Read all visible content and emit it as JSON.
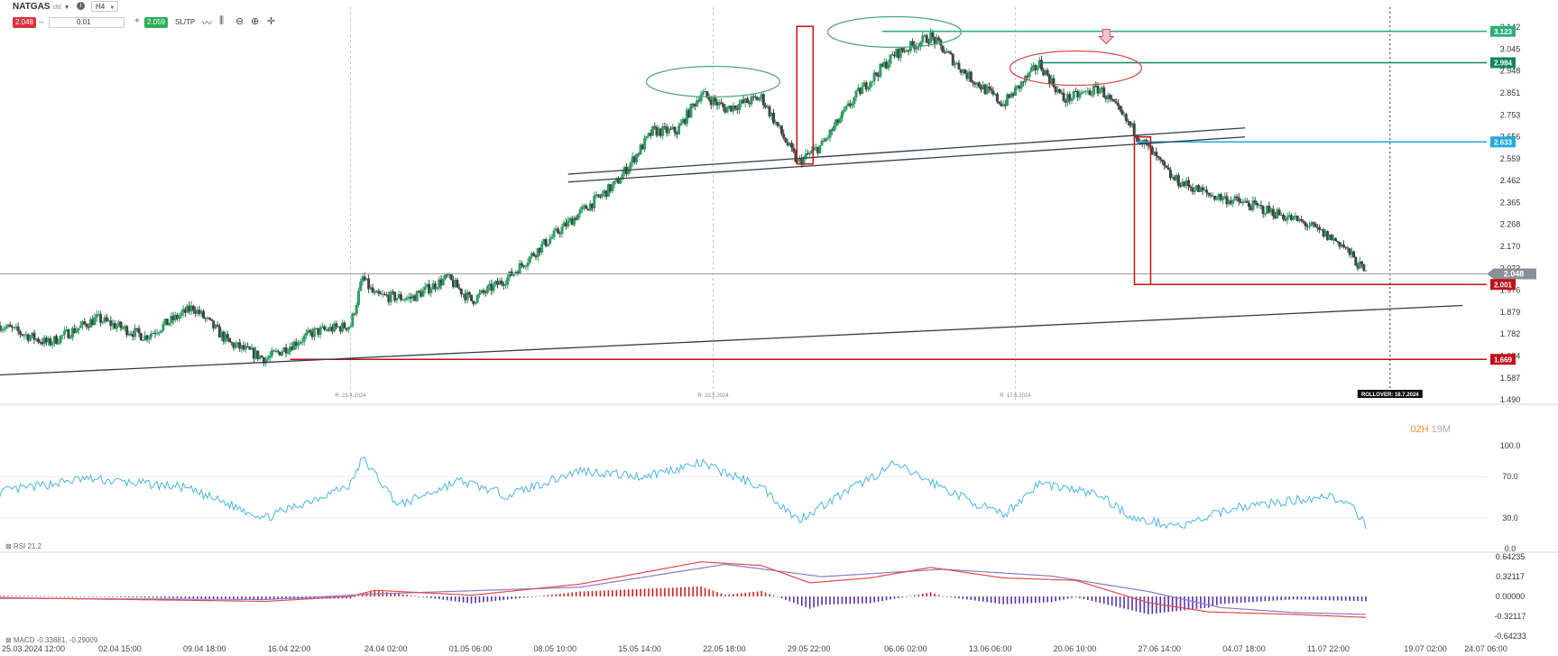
{
  "toolbar": {
    "symbol": "NATGAS",
    "symbol_suffix": "cfd",
    "timeframe": "H4",
    "sell_price": "2.048",
    "volume": "0.01",
    "buy_price": "2.059",
    "sltp_label": "SL/TP"
  },
  "colors": {
    "bull": "#2e9e63",
    "bear": "#444444",
    "rsi": "#4cb4e7",
    "macd_line": "#e04b4b",
    "signal_line": "#8a78c8",
    "hist_pos": "#cc2222",
    "hist_neg": "#5533aa",
    "level_green": "#2bae76",
    "level_darkgreen": "#12875a",
    "level_blue": "#24a8e0",
    "level_red": "#c0101a",
    "ellipse_green": "#4aa878",
    "ellipse_red": "#d24a4a",
    "rect_red": "#cc1010",
    "trendline": "#2f3d4a"
  },
  "chart_data": [
    {
      "type": "candlestick",
      "timeframe": "H4",
      "ylim": [
        1.49,
        3.142
      ],
      "y_ticks": [
        "3.142",
        "3.045",
        "2.948",
        "2.851",
        "2.753",
        "2.656",
        "2.559",
        "2.462",
        "2.365",
        "2.268",
        "2.170",
        "2.073",
        "1.976",
        "1.879",
        "1.782",
        "1.684",
        "1.587",
        "1.490"
      ],
      "x_labels": [
        "25.03.2024 12:00",
        "02.04 15:00",
        "09.04 18:00",
        "16.04 22:00",
        "24.04 02:00",
        "01.05 06:00",
        "08.05 10:00",
        "15.05 14:00",
        "22.05 18:00",
        "29.05 22:00",
        "06.06 02:00",
        "13.06 06:00",
        "20.06 10:00",
        "27.06 14:00",
        "04.07 18:00",
        "11.07 22:00",
        "19.07 02:00",
        "24.07 06:00"
      ],
      "rollover_markers": [
        "R: 23.4.2024",
        "R: 23.5.2024",
        "R: 17.6.2024"
      ],
      "rollover_note": "ROLLOVER: 18.7.2024",
      "countdown": {
        "hours": "02H",
        "minutes": "19M"
      },
      "current_price": "2.048",
      "levels": [
        {
          "value": 3.123,
          "label": "3.123",
          "color": "level_green"
        },
        {
          "value": 2.984,
          "label": "2.984",
          "color": "level_darkgreen"
        },
        {
          "value": 2.633,
          "label": "2.633",
          "color": "level_blue"
        },
        {
          "value": 2.001,
          "label": "2.001",
          "color": "level_red"
        },
        {
          "value": 1.669,
          "label": "1.669",
          "color": "level_red"
        }
      ],
      "close_path": [
        {
          "date": "2024-03-25",
          "close": 1.82
        },
        {
          "date": "2024-03-29",
          "close": 1.74
        },
        {
          "date": "2024-04-02",
          "close": 1.85
        },
        {
          "date": "2024-04-06",
          "close": 1.77
        },
        {
          "date": "2024-04-10",
          "close": 1.9
        },
        {
          "date": "2024-04-13",
          "close": 1.74
        },
        {
          "date": "2024-04-16",
          "close": 1.67
        },
        {
          "date": "2024-04-20",
          "close": 1.79
        },
        {
          "date": "2024-04-23",
          "close": 1.82
        },
        {
          "date": "2024-04-24",
          "close": 2.03
        },
        {
          "date": "2024-04-25",
          "close": 1.95
        },
        {
          "date": "2024-04-28",
          "close": 1.94
        },
        {
          "date": "2024-05-01",
          "close": 2.03
        },
        {
          "date": "2024-05-03",
          "close": 1.93
        },
        {
          "date": "2024-05-06",
          "close": 2.03
        },
        {
          "date": "2024-05-09",
          "close": 2.18
        },
        {
          "date": "2024-05-12",
          "close": 2.32
        },
        {
          "date": "2024-05-15",
          "close": 2.45
        },
        {
          "date": "2024-05-18",
          "close": 2.68
        },
        {
          "date": "2024-05-20",
          "close": 2.68
        },
        {
          "date": "2024-05-22",
          "close": 2.85
        },
        {
          "date": "2024-05-24",
          "close": 2.78
        },
        {
          "date": "2024-05-27",
          "close": 2.83
        },
        {
          "date": "2024-05-30",
          "close": 2.54
        },
        {
          "date": "2024-06-01",
          "close": 2.62
        },
        {
          "date": "2024-06-04",
          "close": 2.85
        },
        {
          "date": "2024-06-07",
          "close": 3.02
        },
        {
          "date": "2024-06-10",
          "close": 3.1
        },
        {
          "date": "2024-06-13",
          "close": 2.93
        },
        {
          "date": "2024-06-16",
          "close": 2.8
        },
        {
          "date": "2024-06-19",
          "close": 2.98
        },
        {
          "date": "2024-06-21",
          "close": 2.82
        },
        {
          "date": "2024-06-24",
          "close": 2.87
        },
        {
          "date": "2024-06-27",
          "close": 2.67
        },
        {
          "date": "2024-06-30",
          "close": 2.47
        },
        {
          "date": "2024-07-03",
          "close": 2.4
        },
        {
          "date": "2024-07-06",
          "close": 2.36
        },
        {
          "date": "2024-07-09",
          "close": 2.31
        },
        {
          "date": "2024-07-11",
          "close": 2.27
        },
        {
          "date": "2024-07-14",
          "close": 2.18
        },
        {
          "date": "2024-07-16",
          "close": 2.048
        }
      ],
      "trendlines": [
        {
          "from": {
            "date": "2024-03-25",
            "value": 1.6
          },
          "to": {
            "date": "2024-07-24",
            "value": 1.908
          }
        },
        {
          "from": {
            "date": "2024-05-11",
            "value": 2.49
          },
          "to": {
            "date": "2024-07-06",
            "value": 2.695
          }
        },
        {
          "from": {
            "date": "2024-05-11",
            "value": 2.455
          },
          "to": {
            "date": "2024-07-06",
            "value": 2.655
          }
        }
      ]
    },
    {
      "type": "line",
      "name": "RSI",
      "legend": "RSI 21.2",
      "ylim": [
        0,
        100
      ],
      "y_ticks": [
        "100.0",
        "70.0",
        "30.0",
        "0.0"
      ],
      "keypoints": [
        {
          "date": "2024-03-25",
          "value": 55
        },
        {
          "date": "2024-04-01",
          "value": 68
        },
        {
          "date": "2024-04-09",
          "value": 60
        },
        {
          "date": "2024-04-16",
          "value": 30
        },
        {
          "date": "2024-04-23",
          "value": 62
        },
        {
          "date": "2024-04-24",
          "value": 88
        },
        {
          "date": "2024-04-27",
          "value": 42
        },
        {
          "date": "2024-05-02",
          "value": 66
        },
        {
          "date": "2024-05-06",
          "value": 52
        },
        {
          "date": "2024-05-12",
          "value": 76
        },
        {
          "date": "2024-05-17",
          "value": 70
        },
        {
          "date": "2024-05-22",
          "value": 83
        },
        {
          "date": "2024-05-27",
          "value": 60
        },
        {
          "date": "2024-05-30",
          "value": 28
        },
        {
          "date": "2024-06-04",
          "value": 62
        },
        {
          "date": "2024-06-07",
          "value": 82
        },
        {
          "date": "2024-06-13",
          "value": 48
        },
        {
          "date": "2024-06-16",
          "value": 32
        },
        {
          "date": "2024-06-19",
          "value": 64
        },
        {
          "date": "2024-06-24",
          "value": 52
        },
        {
          "date": "2024-06-27",
          "value": 28
        },
        {
          "date": "2024-07-01",
          "value": 22
        },
        {
          "date": "2024-07-05",
          "value": 40
        },
        {
          "date": "2024-07-09",
          "value": 45
        },
        {
          "date": "2024-07-13",
          "value": 52
        },
        {
          "date": "2024-07-15",
          "value": 38
        },
        {
          "date": "2024-07-16",
          "value": 21.2
        }
      ]
    },
    {
      "type": "line",
      "name": "MACD",
      "legend": "MACD -0.33881, -0.29009",
      "ylim": [
        -0.64233,
        0.64235
      ],
      "y_ticks": [
        "0.64235",
        "0.32117",
        "0.00000",
        "-0.32117",
        "-0.64233"
      ],
      "macd_keypoints": [
        {
          "date": "2024-03-25",
          "value": -0.02
        },
        {
          "date": "2024-04-16",
          "value": -0.08
        },
        {
          "date": "2024-04-23",
          "value": 0.0
        },
        {
          "date": "2024-04-25",
          "value": 0.1
        },
        {
          "date": "2024-05-03",
          "value": 0.02
        },
        {
          "date": "2024-05-12",
          "value": 0.2
        },
        {
          "date": "2024-05-22",
          "value": 0.56
        },
        {
          "date": "2024-05-27",
          "value": 0.5
        },
        {
          "date": "2024-05-31",
          "value": 0.22
        },
        {
          "date": "2024-06-05",
          "value": 0.3
        },
        {
          "date": "2024-06-10",
          "value": 0.47
        },
        {
          "date": "2024-06-16",
          "value": 0.3
        },
        {
          "date": "2024-06-22",
          "value": 0.26
        },
        {
          "date": "2024-06-28",
          "value": -0.1
        },
        {
          "date": "2024-07-03",
          "value": -0.25
        },
        {
          "date": "2024-07-10",
          "value": -0.29
        },
        {
          "date": "2024-07-16",
          "value": -0.33881
        }
      ],
      "signal_keypoints": [
        {
          "date": "2024-03-25",
          "value": -0.03
        },
        {
          "date": "2024-04-16",
          "value": -0.05
        },
        {
          "date": "2024-04-25",
          "value": 0.04
        },
        {
          "date": "2024-05-12",
          "value": 0.15
        },
        {
          "date": "2024-05-24",
          "value": 0.52
        },
        {
          "date": "2024-06-01",
          "value": 0.32
        },
        {
          "date": "2024-06-11",
          "value": 0.44
        },
        {
          "date": "2024-06-20",
          "value": 0.33
        },
        {
          "date": "2024-06-28",
          "value": 0.08
        },
        {
          "date": "2024-07-04",
          "value": -0.18
        },
        {
          "date": "2024-07-10",
          "value": -0.26
        },
        {
          "date": "2024-07-16",
          "value": -0.29009
        }
      ]
    }
  ]
}
